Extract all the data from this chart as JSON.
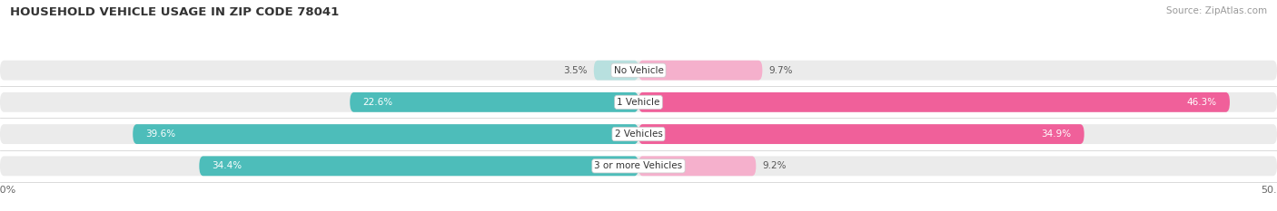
{
  "title": "HOUSEHOLD VEHICLE USAGE IN ZIP CODE 78041",
  "source": "Source: ZipAtlas.com",
  "categories": [
    "No Vehicle",
    "1 Vehicle",
    "2 Vehicles",
    "3 or more Vehicles"
  ],
  "owner_values": [
    3.5,
    22.6,
    39.6,
    34.4
  ],
  "renter_values": [
    9.7,
    46.3,
    34.9,
    9.2
  ],
  "owner_color": "#4dbdba",
  "renter_color": "#f0609a",
  "owner_color_light": "#b8e0df",
  "renter_color_light": "#f5b0cc",
  "bar_bg_color": "#ebebeb",
  "xlim": 50.0,
  "bar_height": 0.62,
  "figsize": [
    14.06,
    2.33
  ],
  "dpi": 100,
  "bg_color": "#ffffff"
}
